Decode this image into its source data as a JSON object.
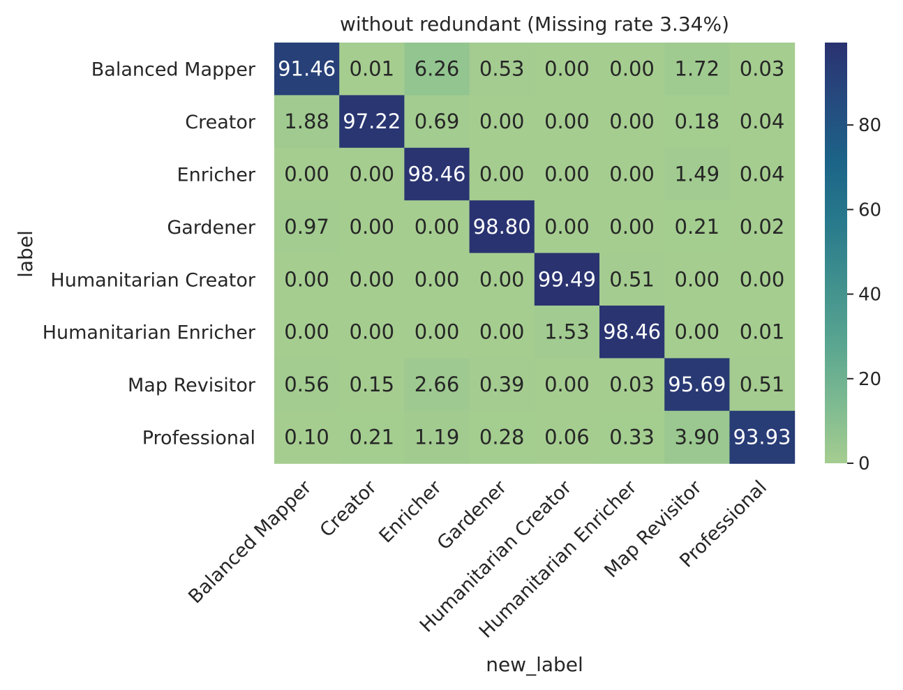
{
  "chart_data": {
    "type": "heatmap",
    "title": "without redundant (Missing rate 3.34%)",
    "xlabel": "new_label",
    "ylabel": "label",
    "row_labels": [
      "Balanced Mapper",
      "Creator",
      "Enricher",
      "Gardener",
      "Humanitarian Creator",
      "Humanitarian Enricher",
      "Map Revisitor",
      "Professional"
    ],
    "col_labels": [
      "Balanced Mapper",
      "Creator",
      "Enricher",
      "Gardener",
      "Humanitarian Creator",
      "Humanitarian Enricher",
      "Map Revisitor",
      "Professional"
    ],
    "values": [
      [
        91.46,
        0.01,
        6.26,
        0.53,
        0.0,
        0.0,
        1.72,
        0.03
      ],
      [
        1.88,
        97.22,
        0.69,
        0.0,
        0.0,
        0.0,
        0.18,
        0.04
      ],
      [
        0.0,
        0.0,
        98.46,
        0.0,
        0.0,
        0.0,
        1.49,
        0.04
      ],
      [
        0.97,
        0.0,
        0.0,
        98.8,
        0.0,
        0.0,
        0.21,
        0.02
      ],
      [
        0.0,
        0.0,
        0.0,
        0.0,
        99.49,
        0.51,
        0.0,
        0.0
      ],
      [
        0.0,
        0.0,
        0.0,
        0.0,
        1.53,
        98.46,
        0.0,
        0.01
      ],
      [
        0.56,
        0.15,
        2.66,
        0.39,
        0.0,
        0.03,
        95.69,
        0.51
      ],
      [
        0.1,
        0.21,
        1.19,
        0.28,
        0.06,
        0.33,
        3.9,
        93.93
      ]
    ],
    "value_format": "2 decimals",
    "colorbar": {
      "ticks": [
        0,
        20,
        40,
        60,
        80
      ],
      "range": [
        0,
        99.49
      ],
      "colormap": "crest",
      "colors": [
        "#a5cd90",
        "#7dba91",
        "#59a590",
        "#40908e",
        "#287a8c",
        "#1c6488",
        "#254b7f",
        "#2a3270"
      ]
    },
    "grid": false,
    "x_tick_rotation": "45"
  }
}
